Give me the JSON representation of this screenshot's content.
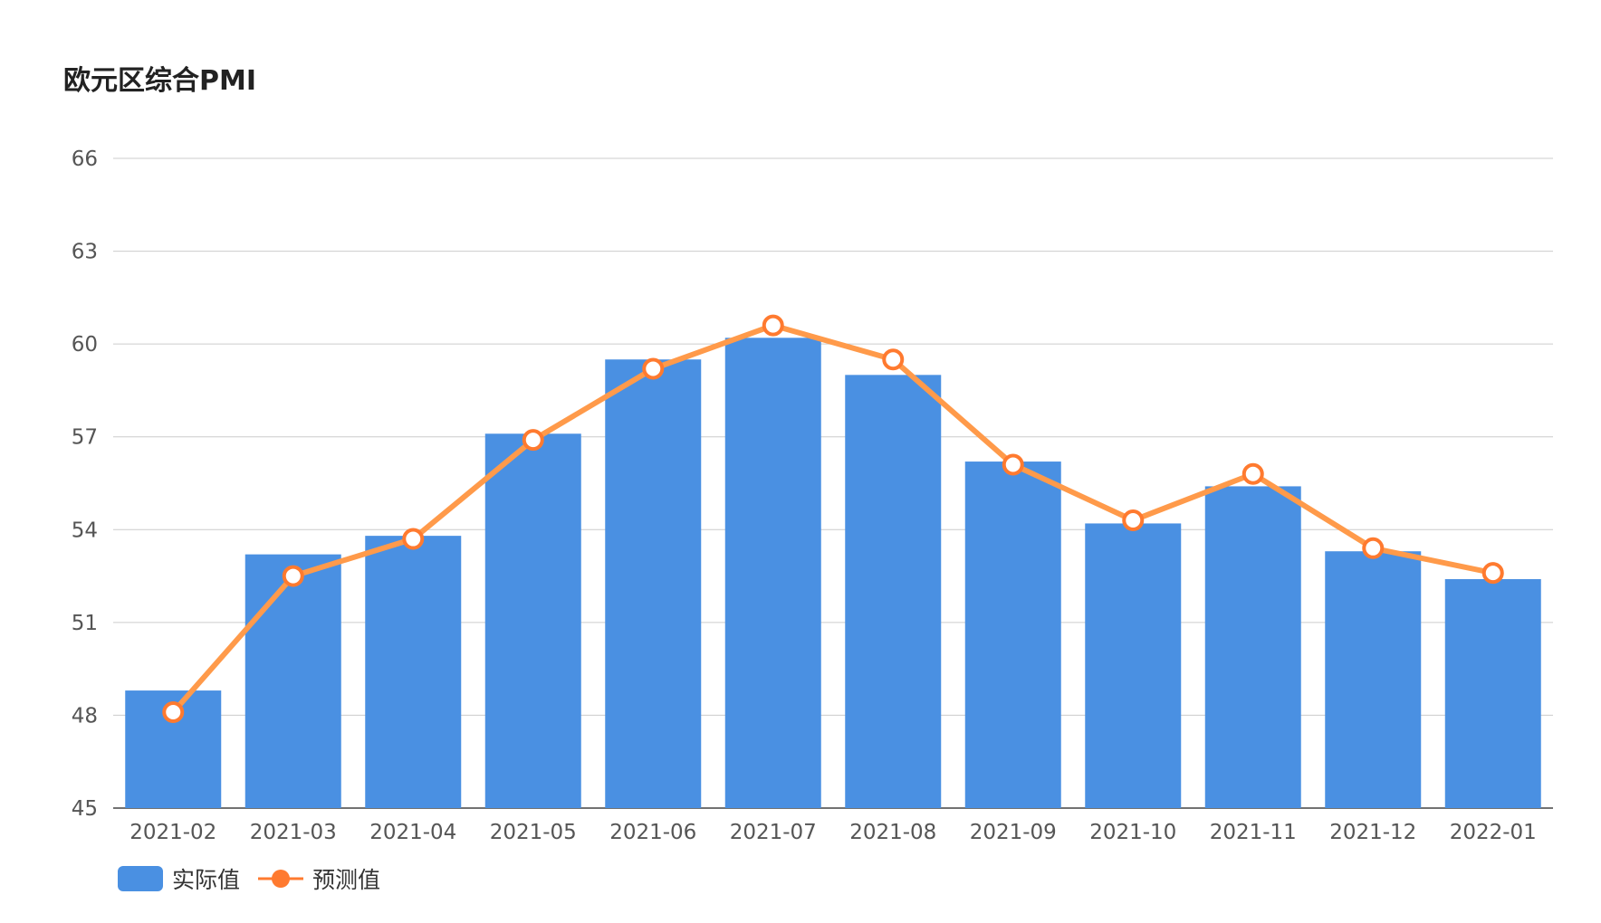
{
  "chart_data": {
    "type": "bar",
    "title": "欧元区综合PMI",
    "xlabel": "",
    "ylabel": "",
    "categories": [
      "2021-02",
      "2021-03",
      "2021-04",
      "2021-05",
      "2021-06",
      "2021-07",
      "2021-08",
      "2021-09",
      "2021-10",
      "2021-11",
      "2021-12",
      "2022-01"
    ],
    "ylim": [
      45,
      66
    ],
    "yticks": [
      45,
      48,
      51,
      54,
      57,
      60,
      63,
      66
    ],
    "grid": true,
    "legend_position": "bottom-left",
    "series": [
      {
        "name": "实际值",
        "type": "bar",
        "color": "#4a90e2",
        "values": [
          48.8,
          53.2,
          53.8,
          57.1,
          59.5,
          60.2,
          59.0,
          56.2,
          54.2,
          55.4,
          53.3,
          52.4
        ]
      },
      {
        "name": "预测值",
        "type": "line",
        "color": "#ff9a4a",
        "marker_color": "#ff7a2f",
        "values": [
          48.1,
          52.5,
          53.7,
          56.9,
          59.2,
          60.6,
          59.5,
          56.1,
          54.3,
          55.8,
          53.4,
          52.6
        ]
      }
    ]
  }
}
